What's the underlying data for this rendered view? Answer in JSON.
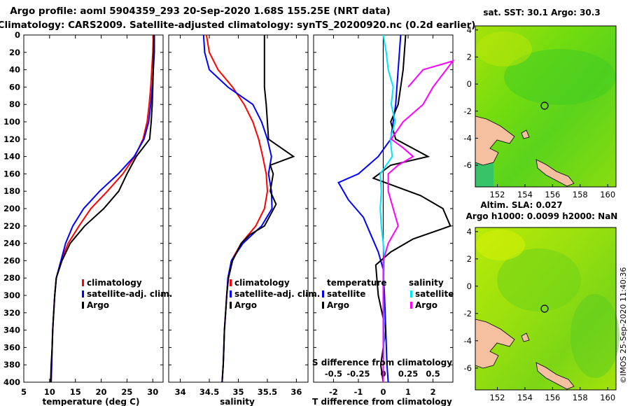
{
  "titles": {
    "line1": "Argo profile: aoml 5904359_293 20-Sep-2020 1.68S 155.25E (NRT data)",
    "line2": "Climatology: CARS2009. Satellite-adjusted climatology: synTS_20200920.nc (0.2d earlier)"
  },
  "depth_ticks": [
    "0",
    "20",
    "40",
    "60",
    "80",
    "100",
    "120",
    "140",
    "160",
    "180",
    "200",
    "220",
    "240",
    "260",
    "280",
    "300",
    "320",
    "340",
    "360",
    "380",
    "400"
  ],
  "colors": {
    "climatology": "#ff0000",
    "satellite": "#0000ff",
    "argo": "#000000",
    "sat_salinity": "#00e5ff",
    "magenta": "#ff00ff"
  },
  "chart_data": [
    {
      "type": "line",
      "xlabel": "temperature (deg C)",
      "xlim": [
        5,
        32
      ],
      "ylim": [
        400,
        0
      ],
      "xticks": [
        "5",
        "10",
        "15",
        "20",
        "25",
        "30"
      ],
      "legend": [
        "climatology",
        "satellite-adj. clim.",
        "Argo"
      ],
      "series": [
        {
          "name": "climatology",
          "color": "#ff0000",
          "points": [
            [
              30.1,
              0
            ],
            [
              30,
              20
            ],
            [
              29.8,
              40
            ],
            [
              29.6,
              60
            ],
            [
              29.3,
              80
            ],
            [
              28.9,
              100
            ],
            [
              28.1,
              120
            ],
            [
              26.5,
              140
            ],
            [
              24.2,
              160
            ],
            [
              21.2,
              180
            ],
            [
              18,
              200
            ],
            [
              15.7,
              220
            ],
            [
              13.6,
              240
            ],
            [
              12.2,
              260
            ],
            [
              11.3,
              280
            ],
            [
              11,
              300
            ],
            [
              10.8,
              320
            ],
            [
              10.6,
              340
            ],
            [
              10.5,
              360
            ],
            [
              10.4,
              380
            ],
            [
              10.3,
              400
            ]
          ]
        },
        {
          "name": "satellite-adj. clim.",
          "color": "#0000ff",
          "points": [
            [
              30.3,
              0
            ],
            [
              30.3,
              20
            ],
            [
              30.1,
              40
            ],
            [
              29.9,
              60
            ],
            [
              29.6,
              80
            ],
            [
              29.2,
              100
            ],
            [
              28.3,
              120
            ],
            [
              26.4,
              140
            ],
            [
              23.3,
              160
            ],
            [
              19.7,
              180
            ],
            [
              16.6,
              200
            ],
            [
              14.5,
              220
            ],
            [
              13.1,
              240
            ],
            [
              12.2,
              260
            ],
            [
              11.3,
              280
            ],
            [
              11,
              300
            ],
            [
              10.8,
              320
            ],
            [
              10.6,
              340
            ],
            [
              10.5,
              360
            ],
            [
              10.4,
              380
            ],
            [
              10.3,
              400
            ]
          ]
        },
        {
          "name": "Argo",
          "color": "#000000",
          "points": [
            [
              30.2,
              0
            ],
            [
              30.2,
              20
            ],
            [
              30.1,
              40
            ],
            [
              30,
              60
            ],
            [
              29.9,
              80
            ],
            [
              29.7,
              100
            ],
            [
              29.4,
              120
            ],
            [
              26.8,
              140
            ],
            [
              25,
              160
            ],
            [
              23.4,
              180
            ],
            [
              20.5,
              200
            ],
            [
              16.8,
              220
            ],
            [
              14,
              240
            ],
            [
              12.4,
              260
            ],
            [
              11.3,
              280
            ],
            [
              11,
              300
            ],
            [
              10.8,
              320
            ],
            [
              10.6,
              340
            ],
            [
              10.5,
              360
            ],
            [
              10.3,
              380
            ],
            [
              10.2,
              400
            ]
          ]
        }
      ]
    },
    {
      "type": "line",
      "xlabel": "salinity",
      "xlim": [
        33.8,
        36.2
      ],
      "ylim": [
        400,
        0
      ],
      "xticks": [
        "34",
        "34.5",
        "35",
        "35.5",
        "36"
      ],
      "legend": [
        "climatology",
        "satellite-adj. clim.",
        "Argo"
      ],
      "series": [
        {
          "name": "climatology",
          "color": "#ff0000",
          "points": [
            [
              34.45,
              0
            ],
            [
              34.5,
              20
            ],
            [
              34.65,
              40
            ],
            [
              34.9,
              60
            ],
            [
              35.1,
              80
            ],
            [
              35.25,
              100
            ],
            [
              35.35,
              120
            ],
            [
              35.42,
              140
            ],
            [
              35.48,
              160
            ],
            [
              35.5,
              180
            ],
            [
              35.45,
              200
            ],
            [
              35.3,
              220
            ],
            [
              35.05,
              240
            ],
            [
              34.88,
              260
            ],
            [
              34.82,
              280
            ],
            [
              34.8,
              300
            ],
            [
              34.78,
              320
            ],
            [
              34.76,
              340
            ],
            [
              34.75,
              360
            ],
            [
              34.74,
              380
            ],
            [
              34.72,
              400
            ]
          ]
        },
        {
          "name": "satellite-adj. clim.",
          "color": "#0000ff",
          "points": [
            [
              34.4,
              0
            ],
            [
              34.42,
              20
            ],
            [
              34.5,
              40
            ],
            [
              34.82,
              60
            ],
            [
              35.25,
              80
            ],
            [
              35.4,
              100
            ],
            [
              35.5,
              120
            ],
            [
              35.57,
              140
            ],
            [
              35.52,
              160
            ],
            [
              35.57,
              180
            ],
            [
              35.58,
              200
            ],
            [
              35.4,
              220
            ],
            [
              35.08,
              240
            ],
            [
              34.88,
              260
            ],
            [
              34.82,
              280
            ],
            [
              34.8,
              300
            ],
            [
              34.78,
              320
            ],
            [
              34.76,
              340
            ],
            [
              34.75,
              360
            ],
            [
              34.74,
              380
            ],
            [
              34.72,
              400
            ]
          ]
        },
        {
          "name": "Argo",
          "color": "#000000",
          "points": [
            [
              35.45,
              0
            ],
            [
              35.45,
              20
            ],
            [
              35.45,
              40
            ],
            [
              35.45,
              60
            ],
            [
              35.48,
              80
            ],
            [
              35.5,
              100
            ],
            [
              35.52,
              120
            ],
            [
              35.95,
              140
            ],
            [
              35.55,
              150
            ],
            [
              35.6,
              160
            ],
            [
              35.55,
              180
            ],
            [
              35.65,
              195
            ],
            [
              35.45,
              220
            ],
            [
              35.2,
              230
            ],
            [
              35.05,
              240
            ],
            [
              34.9,
              260
            ],
            [
              34.83,
              280
            ],
            [
              34.8,
              300
            ],
            [
              34.78,
              320
            ],
            [
              34.76,
              340
            ],
            [
              34.75,
              360
            ],
            [
              34.74,
              380
            ],
            [
              34.72,
              400
            ]
          ]
        }
      ]
    },
    {
      "type": "line",
      "xlabel": "T difference from climatology",
      "xlabel_top": "S difference from climatology",
      "xlim": [
        -2.8,
        2.8
      ],
      "xlim_top": [
        -0.7,
        0.7
      ],
      "ylim": [
        400,
        0
      ],
      "xticks": [
        "-2",
        "-1",
        "0",
        "1",
        "2"
      ],
      "xticks_top": [
        "-0.5",
        "-0.25",
        "0",
        "0.25",
        "0.5"
      ],
      "legend_headers": [
        "temperature",
        "salinity"
      ],
      "legend_left": [
        "satellite",
        "Argo"
      ],
      "legend_right": [
        "satellite",
        "Argo"
      ],
      "series": [
        {
          "name": "temperature satellite",
          "color": "#0000ff",
          "points": [
            [
              0.7,
              0
            ],
            [
              0.65,
              20
            ],
            [
              0.6,
              40
            ],
            [
              0.55,
              60
            ],
            [
              0.5,
              80
            ],
            [
              0.4,
              100
            ],
            [
              0.3,
              120
            ],
            [
              -0.2,
              140
            ],
            [
              -1,
              160
            ],
            [
              -1.8,
              170
            ],
            [
              -1.4,
              190
            ],
            [
              -0.8,
              210
            ],
            [
              -0.5,
              230
            ],
            [
              -0.2,
              250
            ],
            [
              0,
              270
            ],
            [
              0.05,
              300
            ],
            [
              0.1,
              340
            ],
            [
              0.15,
              380
            ],
            [
              0.2,
              400
            ]
          ]
        },
        {
          "name": "temperature Argo",
          "color": "#000000",
          "points": [
            [
              0.9,
              0
            ],
            [
              0.85,
              20
            ],
            [
              0.8,
              40
            ],
            [
              0.7,
              60
            ],
            [
              0.6,
              80
            ],
            [
              0.3,
              100
            ],
            [
              0.5,
              120
            ],
            [
              1.8,
              140
            ],
            [
              0.3,
              150
            ],
            [
              -0.4,
              165
            ],
            [
              1.5,
              185
            ],
            [
              2.4,
              200
            ],
            [
              2.7,
              220
            ],
            [
              1.2,
              235
            ],
            [
              0.3,
              250
            ],
            [
              -0.3,
              265
            ],
            [
              -0.2,
              300
            ],
            [
              0.1,
              340
            ],
            [
              -0.1,
              380
            ],
            [
              0.0,
              400
            ]
          ]
        },
        {
          "name": "salinity satellite",
          "color": "#00e5ff",
          "points": [
            [
              0,
              0
            ],
            [
              0.03,
              20
            ],
            [
              0.05,
              40
            ],
            [
              0.1,
              60
            ],
            [
              0.08,
              80
            ],
            [
              0.12,
              100
            ],
            [
              0.07,
              120
            ],
            [
              0.09,
              140
            ],
            [
              -0.03,
              160
            ],
            [
              -0.02,
              180
            ],
            [
              -0.03,
              200
            ],
            [
              -0.02,
              220
            ],
            [
              0.0,
              240
            ],
            [
              0.01,
              260
            ],
            [
              0.0,
              300
            ],
            [
              0.01,
              340
            ],
            [
              0.0,
              380
            ],
            [
              0.0,
              400
            ]
          ]
        },
        {
          "name": "salinity Argo",
          "color": "#ff00ff",
          "points": [
            [
              0.25,
              60
            ],
            [
              0.4,
              40
            ],
            [
              0.7,
              30
            ],
            [
              0.5,
              60
            ],
            [
              0.4,
              80
            ],
            [
              0.2,
              100
            ],
            [
              0.08,
              120
            ],
            [
              0.2,
              130
            ],
            [
              0.3,
              140
            ],
            [
              0.15,
              150
            ],
            [
              0.05,
              160
            ],
            [
              0.05,
              180
            ],
            [
              0.1,
              200
            ],
            [
              0.15,
              220
            ],
            [
              0.05,
              240
            ],
            [
              0.0,
              260
            ],
            [
              0.0,
              300
            ],
            [
              0.0,
              340
            ],
            [
              0.0,
              380
            ],
            [
              0.0,
              400
            ]
          ]
        }
      ]
    }
  ],
  "maps": {
    "sst": {
      "title": "sat. SST: 30.1  Argo: 30.3",
      "yticks": [
        "4",
        "2",
        "0",
        "-2",
        "-4",
        "-6"
      ],
      "xticks": [
        "152",
        "154",
        "156",
        "158",
        "160"
      ]
    },
    "sla": {
      "title1": "Altim. SLA: 0.027",
      "title2": "Argo h1000: 0.0099 h2000: NaN",
      "yticks": [
        "4",
        "2",
        "0",
        "-2",
        "-4",
        "-6"
      ],
      "xticks": [
        "152",
        "154",
        "156",
        "158",
        "160"
      ]
    }
  },
  "credit": "©IMOS 25-Sep-2020 11:40:36"
}
